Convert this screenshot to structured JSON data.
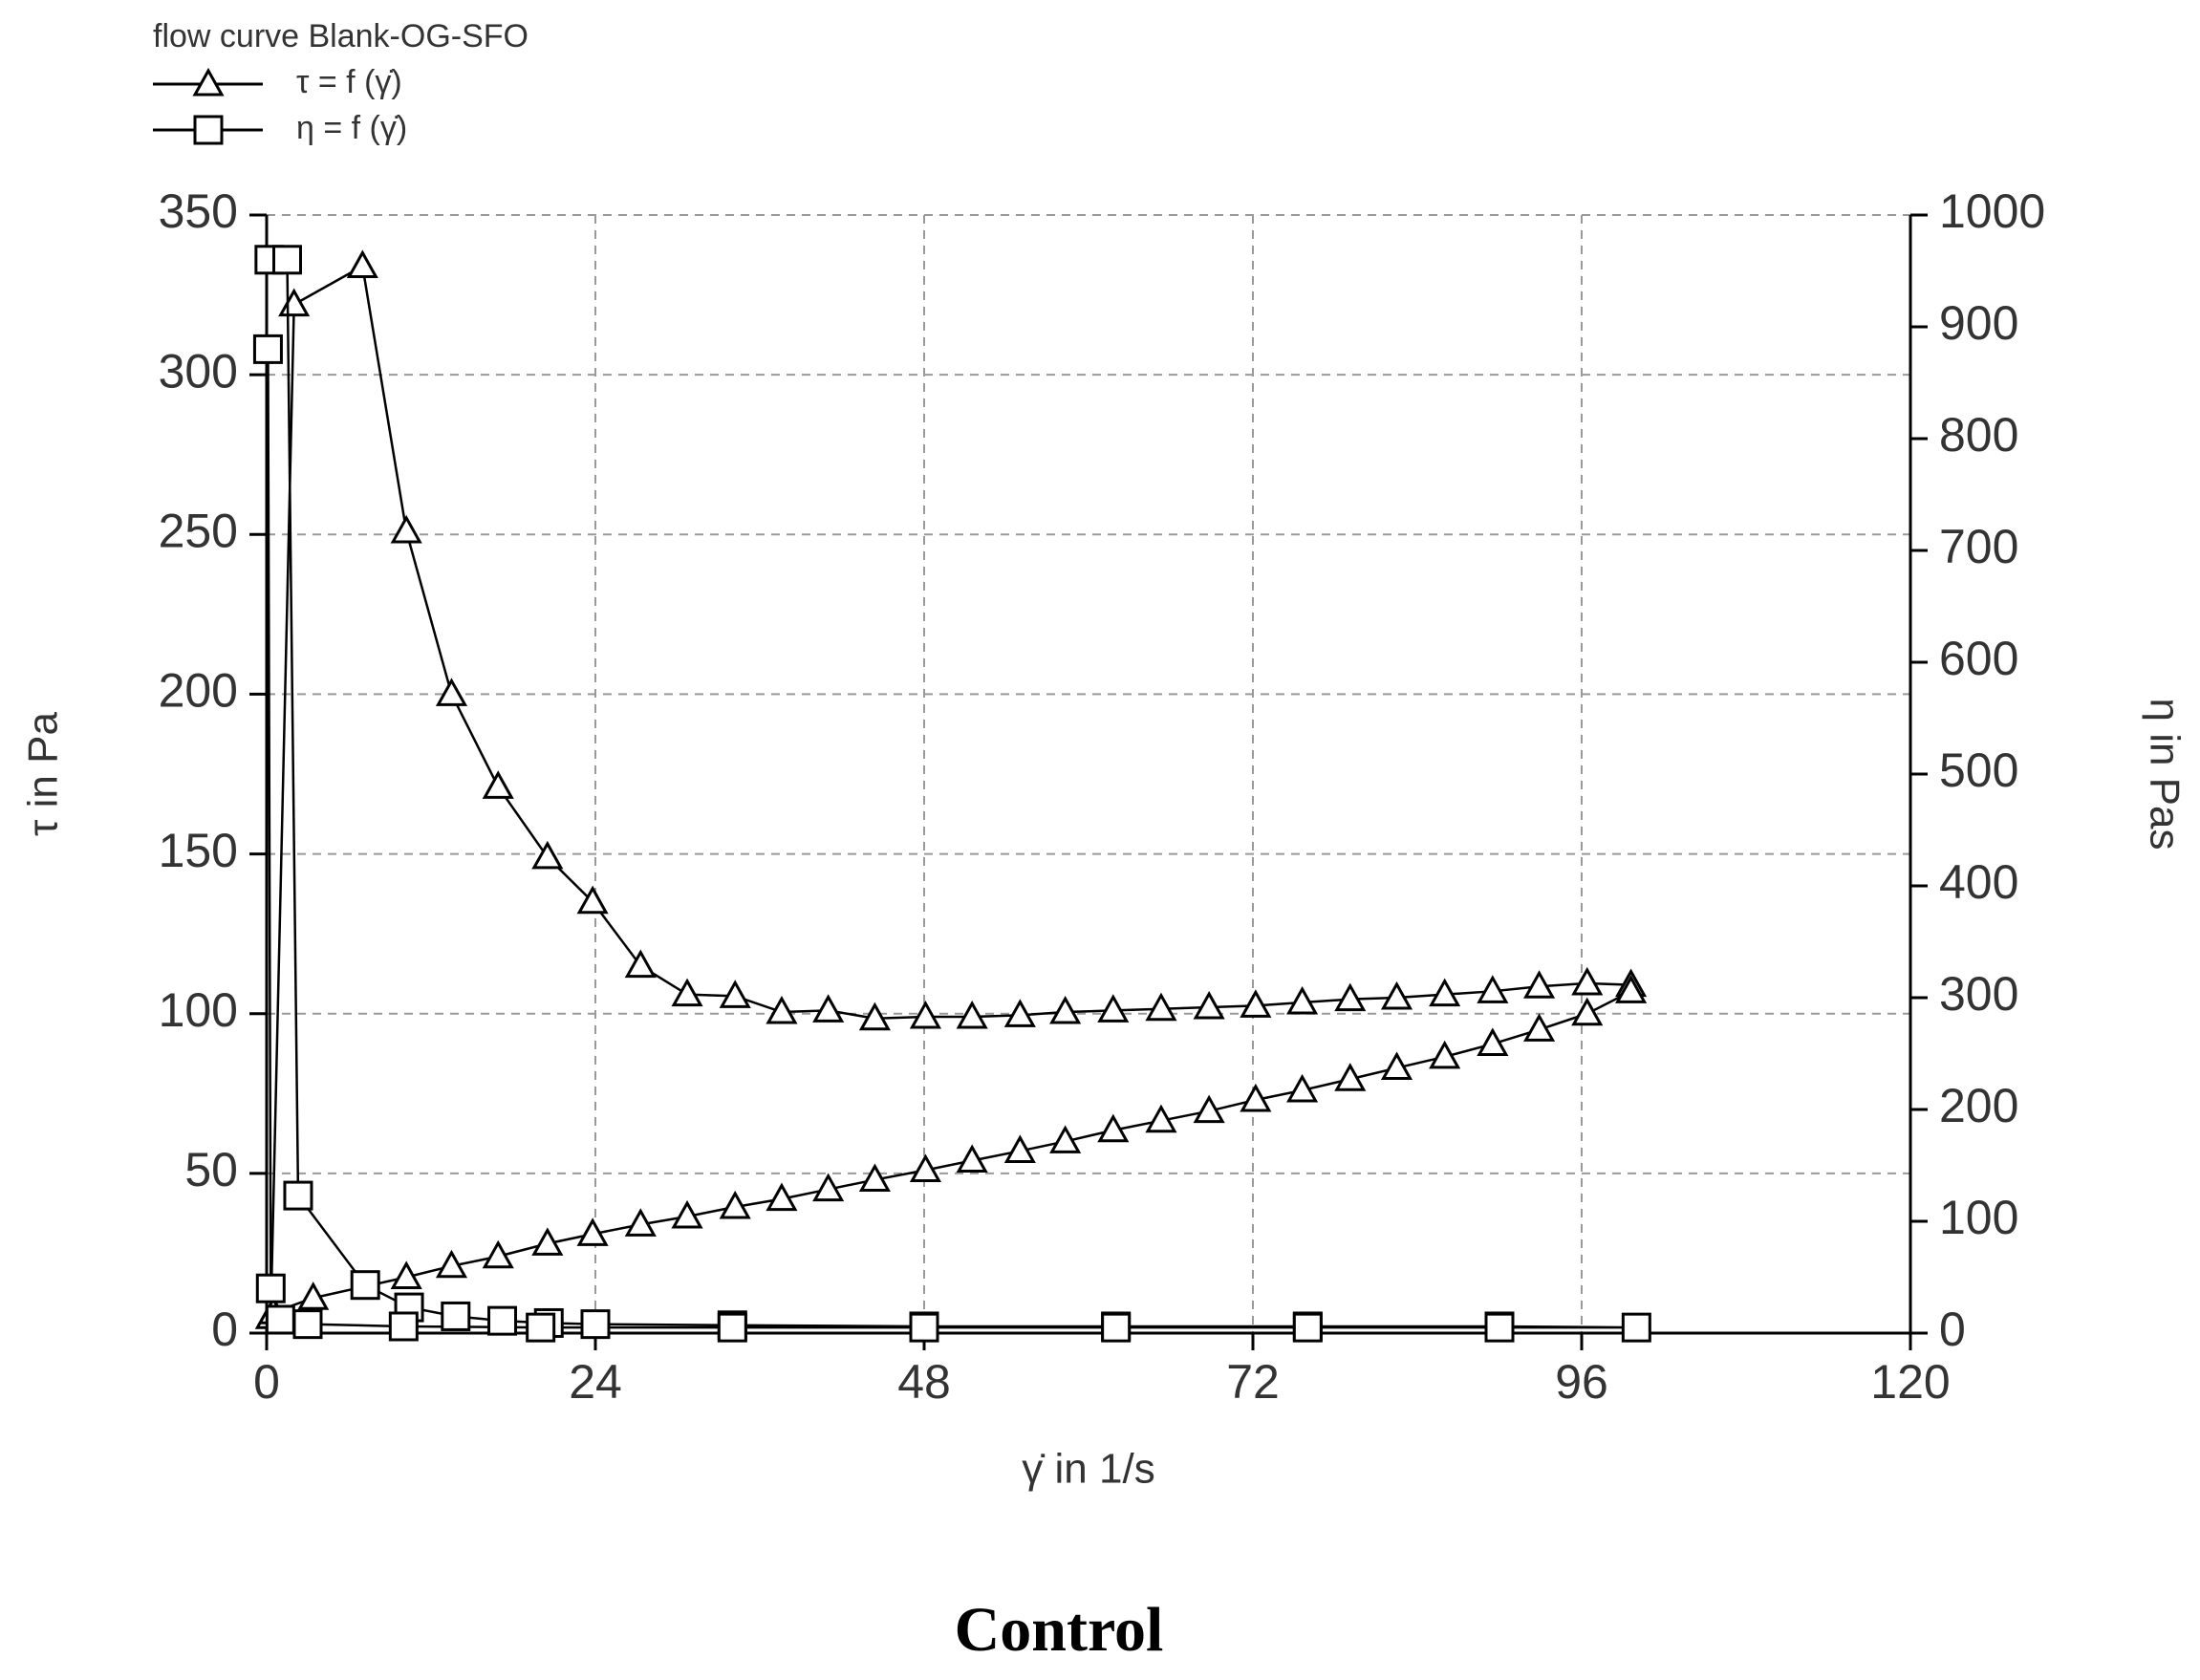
{
  "chart_data": {
    "type": "line",
    "title": "flow curve Blank-OG-SFO",
    "xlabel": "γ̇ in 1/s",
    "ylabel": "τ in Pa",
    "y2label": "η in Pas",
    "caption": "Control",
    "xlim": [
      0,
      120
    ],
    "xticks": [
      0,
      24,
      48,
      72,
      96,
      120
    ],
    "ylim": [
      0,
      350
    ],
    "yticks": [
      0,
      50,
      100,
      150,
      200,
      250,
      300,
      350
    ],
    "y2lim": [
      0,
      1000
    ],
    "y2ticks": [
      0,
      100,
      200,
      300,
      400,
      500,
      600,
      700,
      800,
      900,
      1000
    ],
    "grid": true,
    "legend": "top-left",
    "series": [
      {
        "name": "τ = f (γ̇)",
        "color": "#000000",
        "marker": "triangle",
        "x": [
          0.3,
          2.0,
          7.0,
          10.2,
          13.5,
          16.9,
          20.5,
          23.8,
          27.3,
          30.7,
          34.2,
          37.6,
          41.0,
          44.4,
          48.1,
          51.5,
          55.0,
          58.3,
          61.8,
          65.3,
          68.8,
          72.2,
          75.6,
          79.1,
          82.5,
          86.0,
          89.5,
          92.9,
          96.4,
          99.6,
          99.6,
          96.4,
          92.9,
          89.5,
          86.0,
          82.5,
          79.1,
          75.6,
          72.2,
          68.8,
          65.3,
          61.8,
          58.3,
          55.0,
          51.5,
          48.1,
          44.4,
          41.0,
          37.6,
          34.2,
          30.7,
          27.3,
          23.8,
          20.5,
          16.9,
          13.5,
          10.2,
          3.4,
          0.5
        ],
        "values": [
          5,
          322,
          334,
          251,
          200,
          171,
          149,
          135,
          115,
          106,
          105.5,
          100.5,
          101,
          98.5,
          99,
          99,
          99.5,
          100.5,
          101,
          101.5,
          102,
          102.5,
          103.5,
          104.5,
          105,
          106,
          107,
          108.5,
          109.5,
          109,
          107,
          100,
          95,
          90.5,
          86.5,
          83,
          79.5,
          76,
          73,
          69.5,
          66.5,
          63.5,
          60,
          57,
          54,
          51,
          48,
          45,
          42,
          39.5,
          36.5,
          34,
          31,
          28,
          24,
          21,
          17.5,
          11,
          6.5
        ]
      },
      {
        "name": "η = f (γ̇)",
        "color": "#000000",
        "marker": "square",
        "axis": "y2",
        "x": [
          0.2,
          1.5,
          2.3,
          7.2,
          10.4,
          13.8,
          17.2,
          20.6,
          24,
          34,
          48,
          62,
          76,
          90,
          100,
          90,
          76,
          62,
          48,
          34,
          20,
          10,
          3,
          1,
          0.3,
          0.1
        ],
        "values": [
          960,
          960,
          123,
          43,
          23,
          15,
          11,
          9,
          8,
          7,
          6,
          6,
          6,
          6,
          5,
          5,
          5,
          5,
          5,
          5,
          5,
          6,
          8,
          12,
          40,
          880
        ]
      }
    ]
  }
}
